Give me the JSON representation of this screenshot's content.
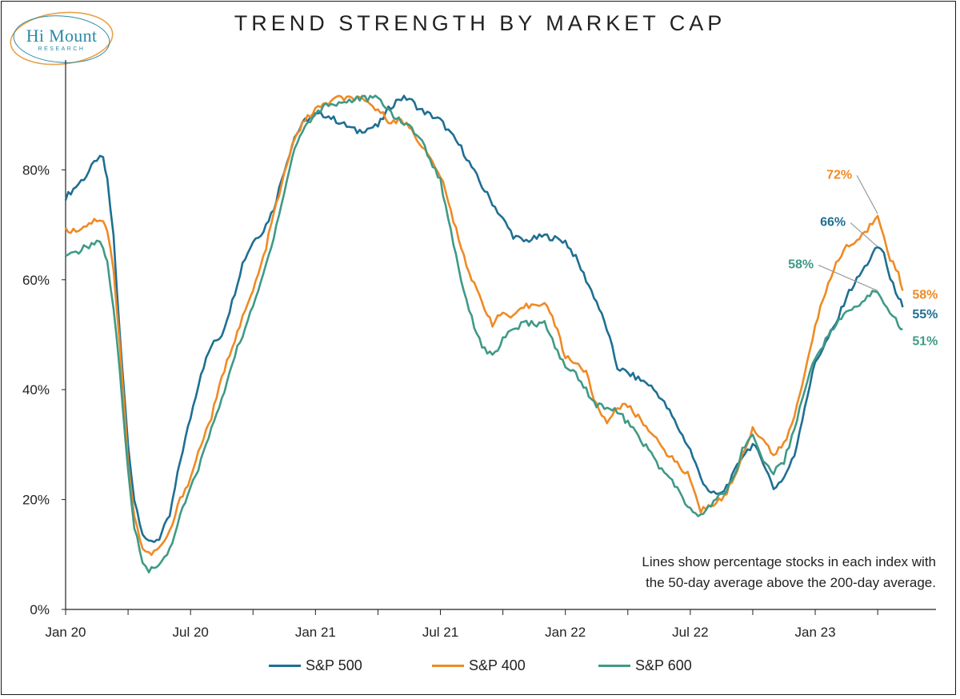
{
  "branding": {
    "name": "Hi Mount",
    "subtitle": "RESEARCH",
    "ring_color": "#e8a24a",
    "text_color": "#2b8aa6"
  },
  "note": {
    "line1": "Lines show percentage stocks in each index with",
    "line2": "the 50-day average above the 200-day average."
  },
  "chart_data": {
    "type": "line",
    "title": "TREND STRENGTH BY MARKET CAP",
    "xlabel": "",
    "ylabel": "",
    "x_ticks": [
      "Jan 20",
      "Jul 20",
      "Jan 21",
      "Jul 21",
      "Jan 22",
      "Jul 22",
      "Jan 23"
    ],
    "y_ticks": [
      "0%",
      "20%",
      "40%",
      "60%",
      "80%"
    ],
    "ylim": [
      0,
      100
    ],
    "x_unit": "months since Jan 2020",
    "grid": false,
    "legend_position": "bottom",
    "series": [
      {
        "name": "S&P 500",
        "color": "#1f6f92",
        "points": [
          [
            0,
            75
          ],
          [
            0.5,
            77
          ],
          [
            1,
            79
          ],
          [
            1.5,
            82
          ],
          [
            1.8,
            82
          ],
          [
            2,
            78
          ],
          [
            2.3,
            68
          ],
          [
            2.6,
            50
          ],
          [
            3,
            30
          ],
          [
            3.3,
            20
          ],
          [
            3.7,
            14
          ],
          [
            4,
            12
          ],
          [
            4.5,
            13
          ],
          [
            5,
            17
          ],
          [
            5.5,
            27
          ],
          [
            6,
            35
          ],
          [
            6.5,
            43
          ],
          [
            7,
            48
          ],
          [
            7.5,
            50
          ],
          [
            8,
            56
          ],
          [
            8.5,
            63
          ],
          [
            9,
            67
          ],
          [
            9.5,
            69
          ],
          [
            10,
            73
          ],
          [
            10.5,
            80
          ],
          [
            11,
            86
          ],
          [
            11.5,
            89
          ],
          [
            12,
            90
          ],
          [
            12.5,
            90
          ],
          [
            13,
            89
          ],
          [
            14,
            87
          ],
          [
            15,
            88
          ],
          [
            15.5,
            91
          ],
          [
            16,
            93
          ],
          [
            16.5,
            93
          ],
          [
            17,
            91
          ],
          [
            18,
            89
          ],
          [
            19,
            84
          ],
          [
            20,
            77
          ],
          [
            21,
            71
          ],
          [
            21.5,
            68
          ],
          [
            22,
            67
          ],
          [
            23,
            68
          ],
          [
            24,
            67
          ],
          [
            24.5,
            64
          ],
          [
            25,
            60
          ],
          [
            25.5,
            56
          ],
          [
            26,
            51
          ],
          [
            26.5,
            44
          ],
          [
            27,
            43
          ],
          [
            28,
            41
          ],
          [
            28.5,
            39
          ],
          [
            29,
            36
          ],
          [
            30,
            29
          ],
          [
            30.5,
            24
          ],
          [
            31,
            21
          ],
          [
            31.5,
            21
          ],
          [
            32,
            24
          ],
          [
            32.5,
            28
          ],
          [
            33,
            30
          ],
          [
            33.5,
            27
          ],
          [
            34,
            22
          ],
          [
            34.5,
            24
          ],
          [
            35,
            28
          ],
          [
            35.5,
            37
          ],
          [
            36,
            45
          ],
          [
            37,
            52
          ],
          [
            37.5,
            57
          ],
          [
            38,
            60
          ],
          [
            38.5,
            63
          ],
          [
            39,
            66
          ],
          [
            39.3,
            65
          ],
          [
            39.6,
            60
          ],
          [
            40,
            57
          ],
          [
            40.2,
            55
          ]
        ]
      },
      {
        "name": "S&P 400",
        "color": "#f08a24",
        "points": [
          [
            0,
            69
          ],
          [
            0.5,
            69
          ],
          [
            1,
            70
          ],
          [
            1.5,
            71
          ],
          [
            1.8,
            71
          ],
          [
            2,
            69
          ],
          [
            2.3,
            62
          ],
          [
            2.6,
            48
          ],
          [
            3,
            27
          ],
          [
            3.3,
            17
          ],
          [
            3.7,
            11
          ],
          [
            4,
            10
          ],
          [
            4.5,
            11
          ],
          [
            5,
            14
          ],
          [
            5.5,
            20
          ],
          [
            6,
            24
          ],
          [
            6.5,
            30
          ],
          [
            7,
            35
          ],
          [
            7.5,
            42
          ],
          [
            8,
            48
          ],
          [
            8.5,
            53
          ],
          [
            9,
            58
          ],
          [
            9.5,
            64
          ],
          [
            10,
            72
          ],
          [
            10.5,
            79
          ],
          [
            11,
            86
          ],
          [
            11.5,
            89
          ],
          [
            12,
            91
          ],
          [
            12.5,
            92
          ],
          [
            13,
            93
          ],
          [
            14,
            93
          ],
          [
            15,
            91
          ],
          [
            15.5,
            89
          ],
          [
            16,
            89
          ],
          [
            16.5,
            88
          ],
          [
            17,
            85
          ],
          [
            18,
            79
          ],
          [
            19,
            66
          ],
          [
            19.5,
            60
          ],
          [
            20,
            56
          ],
          [
            20.5,
            52
          ],
          [
            21,
            54
          ],
          [
            21.5,
            53
          ],
          [
            22,
            55
          ],
          [
            23,
            56
          ],
          [
            23.5,
            52
          ],
          [
            24,
            46
          ],
          [
            24.5,
            45
          ],
          [
            25,
            43
          ],
          [
            25.5,
            37
          ],
          [
            26,
            34
          ],
          [
            26.5,
            37
          ],
          [
            27,
            37
          ],
          [
            28,
            33
          ],
          [
            28.5,
            30
          ],
          [
            29,
            28
          ],
          [
            30,
            24
          ],
          [
            30.5,
            18
          ],
          [
            31,
            19
          ],
          [
            31.5,
            20
          ],
          [
            32,
            23
          ],
          [
            32.5,
            28
          ],
          [
            33,
            33
          ],
          [
            33.5,
            31
          ],
          [
            34,
            28
          ],
          [
            34.5,
            30
          ],
          [
            35,
            35
          ],
          [
            35.5,
            43
          ],
          [
            36,
            52
          ],
          [
            37,
            63
          ],
          [
            37.5,
            66
          ],
          [
            38,
            67
          ],
          [
            38.5,
            69
          ],
          [
            39,
            72
          ],
          [
            39.3,
            68
          ],
          [
            39.6,
            64
          ],
          [
            40,
            61
          ],
          [
            40.2,
            58
          ]
        ]
      },
      {
        "name": "S&P 600",
        "color": "#3f9a86",
        "points": [
          [
            0,
            64
          ],
          [
            0.5,
            65
          ],
          [
            1,
            66
          ],
          [
            1.5,
            67
          ],
          [
            1.8,
            66
          ],
          [
            2,
            63
          ],
          [
            2.3,
            55
          ],
          [
            2.6,
            43
          ],
          [
            3,
            25
          ],
          [
            3.3,
            15
          ],
          [
            3.7,
            9
          ],
          [
            4,
            7
          ],
          [
            4.5,
            8
          ],
          [
            5,
            11
          ],
          [
            5.5,
            17
          ],
          [
            6,
            22
          ],
          [
            6.5,
            27
          ],
          [
            7,
            33
          ],
          [
            7.5,
            38
          ],
          [
            8,
            45
          ],
          [
            8.5,
            50
          ],
          [
            9,
            55
          ],
          [
            9.5,
            61
          ],
          [
            10,
            68
          ],
          [
            10.5,
            76
          ],
          [
            11,
            84
          ],
          [
            11.5,
            88
          ],
          [
            12,
            90
          ],
          [
            12.5,
            92
          ],
          [
            13,
            92
          ],
          [
            14,
            93
          ],
          [
            15,
            93
          ],
          [
            15.5,
            91
          ],
          [
            16,
            89
          ],
          [
            16.5,
            88
          ],
          [
            17,
            86
          ],
          [
            18,
            78
          ],
          [
            19,
            60
          ],
          [
            19.5,
            53
          ],
          [
            20,
            48
          ],
          [
            20.5,
            46
          ],
          [
            21,
            49
          ],
          [
            21.5,
            51
          ],
          [
            22,
            52
          ],
          [
            23,
            52
          ],
          [
            23.5,
            48
          ],
          [
            24,
            44
          ],
          [
            24.5,
            43
          ],
          [
            25,
            40
          ],
          [
            25.5,
            37
          ],
          [
            26,
            37
          ],
          [
            26.5,
            36
          ],
          [
            27,
            34
          ],
          [
            28,
            29
          ],
          [
            28.5,
            26
          ],
          [
            29,
            24
          ],
          [
            30,
            18
          ],
          [
            30.5,
            17
          ],
          [
            31,
            19
          ],
          [
            31.5,
            21
          ],
          [
            32,
            23
          ],
          [
            32.5,
            29
          ],
          [
            33,
            32
          ],
          [
            33.5,
            27
          ],
          [
            34,
            25
          ],
          [
            34.5,
            27
          ],
          [
            35,
            33
          ],
          [
            35.5,
            40
          ],
          [
            36,
            46
          ],
          [
            37,
            52
          ],
          [
            37.5,
            54
          ],
          [
            38,
            55
          ],
          [
            38.5,
            57
          ],
          [
            39,
            58
          ],
          [
            39.3,
            56
          ],
          [
            39.6,
            54
          ],
          [
            40,
            52
          ],
          [
            40.2,
            51
          ]
        ]
      }
    ],
    "annotations": [
      {
        "text": "72%",
        "series": "S&P 400",
        "at_x": 39,
        "at_y": 72,
        "color": "#f08a24"
      },
      {
        "text": "66%",
        "series": "S&P 500",
        "at_x": 39,
        "at_y": 66,
        "color": "#1f6f92"
      },
      {
        "text": "58%",
        "series": "S&P 600",
        "at_x": 39,
        "at_y": 58,
        "color": "#3f9a86"
      },
      {
        "text": "58%",
        "series": "S&P 400",
        "at_x": 40.2,
        "at_y": 58,
        "color": "#f08a24"
      },
      {
        "text": "55%",
        "series": "S&P 500",
        "at_x": 40.2,
        "at_y": 55,
        "color": "#1f6f92"
      },
      {
        "text": "51%",
        "series": "S&P 600",
        "at_x": 40.2,
        "at_y": 51,
        "color": "#3f9a86"
      }
    ]
  }
}
